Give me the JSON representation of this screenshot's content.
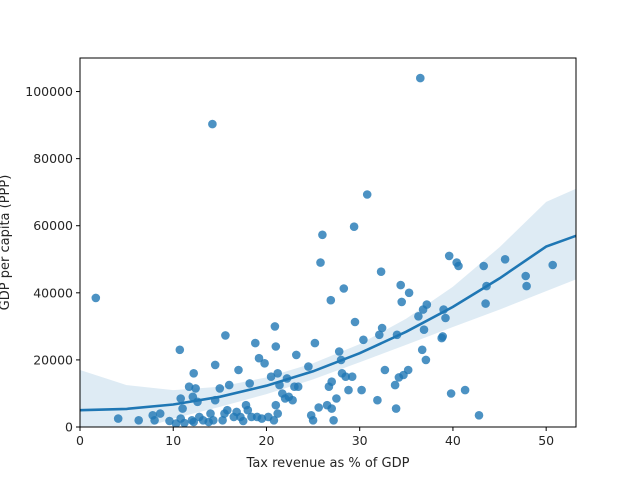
{
  "chart_data": {
    "type": "scatter",
    "xlabel": "Tax revenue as % of GDP",
    "ylabel": "GDP per capita (PPP)",
    "xlim": [
      0,
      53.2
    ],
    "ylim": [
      0,
      110000
    ],
    "xticks": [
      0,
      10,
      20,
      30,
      40,
      50
    ],
    "yticks": [
      0,
      20000,
      40000,
      60000,
      80000,
      100000
    ],
    "xtick_labels": [
      "0",
      "10",
      "20",
      "30",
      "40",
      "50"
    ],
    "ytick_labels": [
      "0",
      "20000",
      "40000",
      "60000",
      "80000",
      "100000"
    ],
    "grid": false,
    "legend": "none",
    "colors": {
      "points": "#1f77b4",
      "fit_line": "#1f77b4",
      "band": "#1f77b4"
    },
    "points": [
      [
        1.7,
        38500
      ],
      [
        4.1,
        2500
      ],
      [
        6.3,
        2000
      ],
      [
        7.8,
        3500
      ],
      [
        8.0,
        2000
      ],
      [
        8.6,
        4000
      ],
      [
        9.6,
        1800
      ],
      [
        10.3,
        1000
      ],
      [
        10.7,
        23000
      ],
      [
        10.8,
        8500
      ],
      [
        10.8,
        2500
      ],
      [
        11.0,
        5500
      ],
      [
        11.2,
        1200
      ],
      [
        11.7,
        12000
      ],
      [
        12.0,
        2000
      ],
      [
        12.1,
        9000
      ],
      [
        12.2,
        16000
      ],
      [
        12.2,
        1500
      ],
      [
        12.4,
        11500
      ],
      [
        12.6,
        7500
      ],
      [
        12.8,
        3000
      ],
      [
        13.2,
        2000
      ],
      [
        13.8,
        1500
      ],
      [
        14.0,
        4000
      ],
      [
        14.2,
        90300
      ],
      [
        14.3,
        2000
      ],
      [
        14.5,
        18500
      ],
      [
        14.5,
        8000
      ],
      [
        15.0,
        11500
      ],
      [
        15.3,
        2000
      ],
      [
        15.5,
        4000
      ],
      [
        15.6,
        27300
      ],
      [
        15.8,
        5000
      ],
      [
        16.0,
        12500
      ],
      [
        16.5,
        3000
      ],
      [
        16.8,
        4500
      ],
      [
        17.0,
        17000
      ],
      [
        17.2,
        3000
      ],
      [
        17.5,
        1800
      ],
      [
        17.8,
        6500
      ],
      [
        18.0,
        5000
      ],
      [
        18.2,
        13000
      ],
      [
        18.4,
        3000
      ],
      [
        18.8,
        25000
      ],
      [
        19.0,
        3000
      ],
      [
        19.2,
        20500
      ],
      [
        19.5,
        2500
      ],
      [
        19.8,
        19000
      ],
      [
        20.2,
        3000
      ],
      [
        20.5,
        15000
      ],
      [
        20.8,
        2000
      ],
      [
        20.9,
        30000
      ],
      [
        21.0,
        24000
      ],
      [
        21.0,
        6500
      ],
      [
        21.2,
        16000
      ],
      [
        21.2,
        4000
      ],
      [
        21.4,
        12500
      ],
      [
        21.7,
        10000
      ],
      [
        22.0,
        8500
      ],
      [
        22.2,
        14500
      ],
      [
        22.4,
        9000
      ],
      [
        22.8,
        8000
      ],
      [
        23.0,
        12000
      ],
      [
        23.2,
        21500
      ],
      [
        23.4,
        12000
      ],
      [
        24.5,
        18000
      ],
      [
        24.8,
        3500
      ],
      [
        25.0,
        2000
      ],
      [
        25.2,
        25000
      ],
      [
        25.6,
        5800
      ],
      [
        25.8,
        49000
      ],
      [
        26.0,
        57300
      ],
      [
        26.5,
        6500
      ],
      [
        26.7,
        12000
      ],
      [
        26.9,
        37800
      ],
      [
        27.0,
        13500
      ],
      [
        27.0,
        5500
      ],
      [
        27.2,
        2000
      ],
      [
        27.5,
        8500
      ],
      [
        27.8,
        22500
      ],
      [
        28.0,
        20000
      ],
      [
        28.1,
        16000
      ],
      [
        28.3,
        41300
      ],
      [
        28.5,
        15000
      ],
      [
        28.8,
        11000
      ],
      [
        29.2,
        15000
      ],
      [
        29.4,
        59700
      ],
      [
        29.5,
        31300
      ],
      [
        30.2,
        11000
      ],
      [
        30.4,
        26000
      ],
      [
        30.8,
        69300
      ],
      [
        31.9,
        8000
      ],
      [
        32.1,
        27500
      ],
      [
        32.3,
        46300
      ],
      [
        32.4,
        29500
      ],
      [
        32.7,
        17000
      ],
      [
        33.8,
        12500
      ],
      [
        33.9,
        5500
      ],
      [
        34.0,
        27500
      ],
      [
        34.2,
        14800
      ],
      [
        34.4,
        42300
      ],
      [
        34.5,
        37300
      ],
      [
        34.7,
        15500
      ],
      [
        35.2,
        17000
      ],
      [
        35.3,
        40000
      ],
      [
        36.3,
        33000
      ],
      [
        36.5,
        104000
      ],
      [
        36.7,
        23000
      ],
      [
        36.8,
        35000
      ],
      [
        36.9,
        29000
      ],
      [
        37.1,
        20000
      ],
      [
        37.2,
        36500
      ],
      [
        38.8,
        26500
      ],
      [
        38.9,
        27000
      ],
      [
        39.0,
        35000
      ],
      [
        39.2,
        32500
      ],
      [
        39.6,
        51000
      ],
      [
        39.8,
        10000
      ],
      [
        40.4,
        49000
      ],
      [
        40.6,
        48000
      ],
      [
        41.3,
        11000
      ],
      [
        42.8,
        3500
      ],
      [
        43.3,
        48000
      ],
      [
        43.5,
        36800
      ],
      [
        43.6,
        42000
      ],
      [
        45.6,
        50000
      ],
      [
        47.8,
        45000
      ],
      [
        47.9,
        42000
      ],
      [
        50.7,
        48300
      ]
    ],
    "fit": {
      "x": [
        0,
        5,
        10,
        15,
        20,
        25,
        30,
        35,
        40,
        45,
        50,
        53.2
      ],
      "y": [
        5000,
        5400,
        6700,
        9000,
        12300,
        16600,
        22000,
        28400,
        35800,
        44300,
        53800,
        57000
      ],
      "ci_low": [
        -7000,
        -2000,
        2500,
        6000,
        9800,
        14200,
        19300,
        24500,
        29800,
        35000,
        40500,
        44000
      ],
      "ci_high": [
        17000,
        12500,
        11000,
        12000,
        14800,
        19000,
        24700,
        32300,
        41800,
        53600,
        67100,
        71000
      ]
    }
  }
}
